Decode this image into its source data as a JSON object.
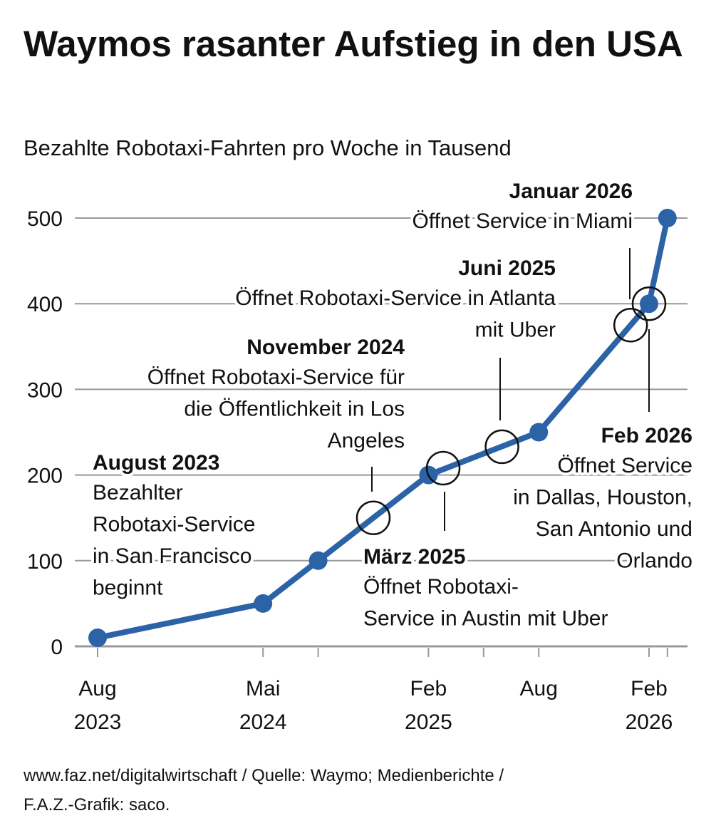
{
  "title": "Waymos rasanter Aufstieg in den USA",
  "subtitle": "Bezahlte Robotaxi-Fahrten pro Woche in Tausend",
  "footer_line1": "www.faz.net/digitalwirtschaft / Quelle: Waymo; Medienberichte /",
  "footer_line2": "F.A.Z.-Grafik: saco.",
  "colors": {
    "line": "#2b63a6",
    "grid": "#999999",
    "text": "#111111"
  },
  "chart_data": {
    "type": "line",
    "title": "Waymos rasanter Aufstieg in den USA",
    "ylabel": "Bezahlte Robotaxi-Fahrten pro Woche in Tausend",
    "xlabel": "",
    "x_unit": "months since Aug 2023",
    "ylim": [
      0,
      500
    ],
    "yticks": [
      0,
      100,
      200,
      300,
      400,
      500
    ],
    "grid": true,
    "xticks": [
      {
        "month": 0,
        "label1": "Aug",
        "label2": "2023"
      },
      {
        "month": 9,
        "label1": "Mai",
        "label2": "2024"
      },
      {
        "month": 12,
        "label1": "",
        "label2": ""
      },
      {
        "month": 18,
        "label1": "Feb",
        "label2": "2025"
      },
      {
        "month": 21,
        "label1": "",
        "label2": ""
      },
      {
        "month": 24,
        "label1": "Aug",
        "label2": ""
      },
      {
        "month": 30,
        "label1": "Feb",
        "label2": "2026"
      },
      {
        "month": 31,
        "label1": "",
        "label2": ""
      }
    ],
    "series": [
      {
        "name": "Bezahlte Fahrten pro Woche (Tsd.)",
        "points": [
          {
            "date": "Aug 2023",
            "month": 0,
            "value": 10
          },
          {
            "date": "Mai 2024",
            "month": 9,
            "value": 50
          },
          {
            "date": "Aug 2024",
            "month": 12,
            "value": 100
          },
          {
            "date": "Feb 2025",
            "month": 18,
            "value": 200
          },
          {
            "date": "Aug 2025",
            "month": 24,
            "value": 250
          },
          {
            "date": "Feb 2026",
            "month": 30,
            "value": 400
          },
          {
            "date": "Mär 2026",
            "month": 31,
            "value": 500
          }
        ]
      }
    ],
    "annotations": [
      {
        "marker_month": null,
        "marker_value": null,
        "heading": "August 2023",
        "lines": [
          "Bezahlter",
          "Robotaxi-Service",
          "in San Francisco",
          "beginnt"
        ]
      },
      {
        "marker_month": 15,
        "marker_value": 150,
        "heading": "November 2024",
        "lines": [
          "Öffnet Robotaxi-Service für",
          "die Öffentlichkeit in Los",
          "Angeles"
        ]
      },
      {
        "marker_month": 18.8,
        "marker_value": 208,
        "heading": "März 2025",
        "lines": [
          "Öffnet Robotaxi-",
          "Service in Austin mit Uber"
        ]
      },
      {
        "marker_month": 22,
        "marker_value": 233,
        "heading": "Juni 2025",
        "lines": [
          "Öffnet Robotaxi-Service in Atlanta",
          "mit Uber"
        ]
      },
      {
        "marker_month": 29,
        "marker_value": 375,
        "heading": "Januar 2026",
        "lines": [
          "Öffnet Service in Miami"
        ]
      },
      {
        "marker_month": 30,
        "marker_value": 400,
        "heading": "Feb 2026",
        "lines": [
          "Öffnet Service",
          "in Dallas, Houston,",
          "San Antonio und",
          "Orlando"
        ]
      }
    ]
  }
}
